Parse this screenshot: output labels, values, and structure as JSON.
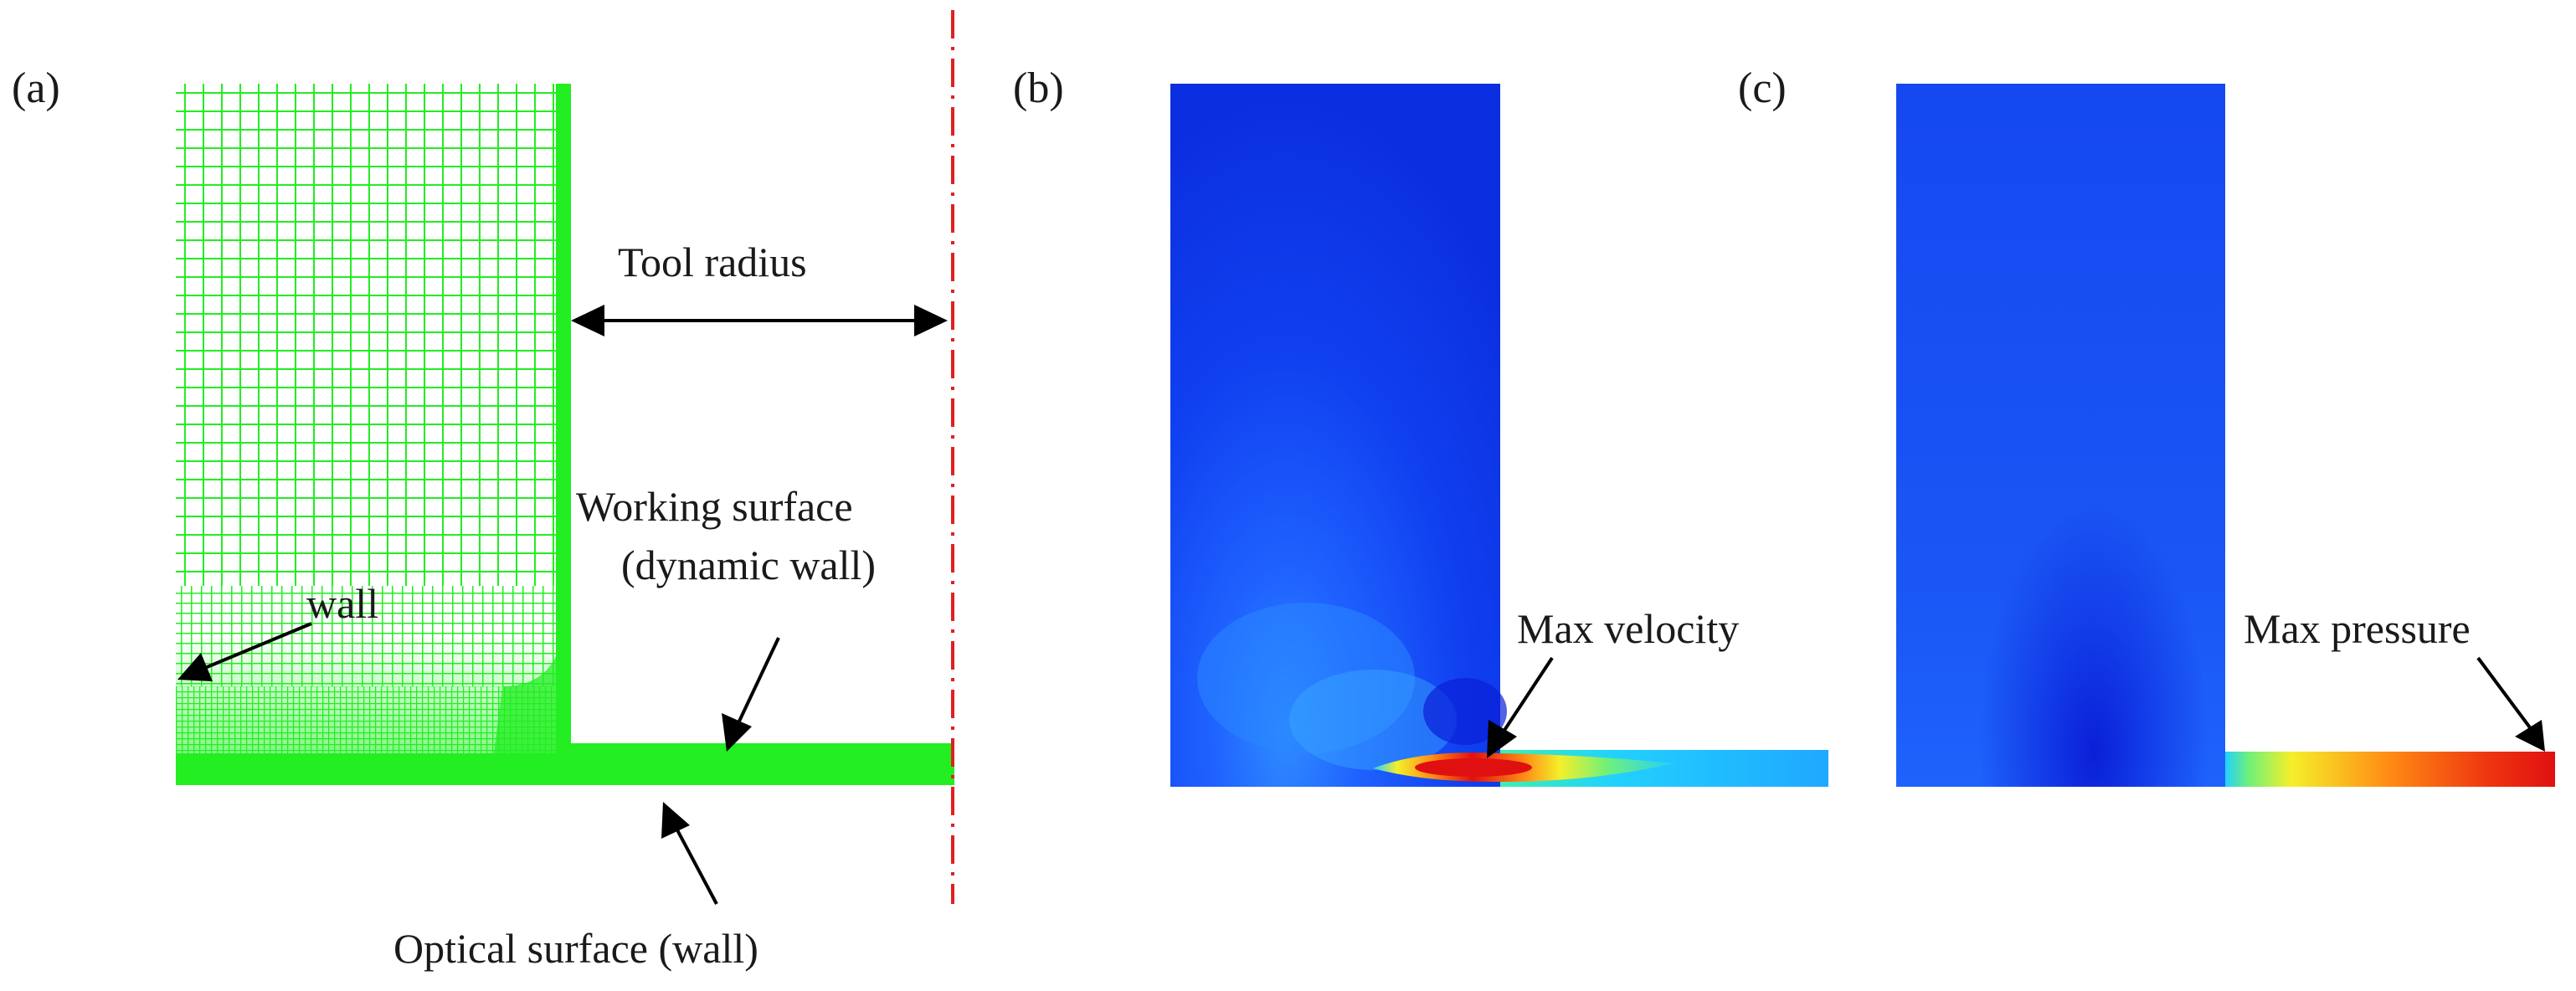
{
  "panels": {
    "a": {
      "label": "(a)",
      "annotations": {
        "tool_radius": "Tool radius",
        "working_surface_line1": "Working surface",
        "working_surface_line2": "(dynamic wall)",
        "wall": "wall",
        "optical_surface": "Optical surface (wall)"
      },
      "mesh_color": "#22ee22",
      "axis_color": "#e02020"
    },
    "b": {
      "label": "(b)",
      "annotation": "Max velocity",
      "field": "velocity contour"
    },
    "c": {
      "label": "(c)",
      "annotation": "Max pressure",
      "field": "pressure contour"
    }
  },
  "colormap": [
    "#0a1fd8",
    "#1f6bff",
    "#22d0ff",
    "#6ef07a",
    "#f5ef2a",
    "#ff8a14",
    "#e01010"
  ],
  "arrow_color": "#000000"
}
